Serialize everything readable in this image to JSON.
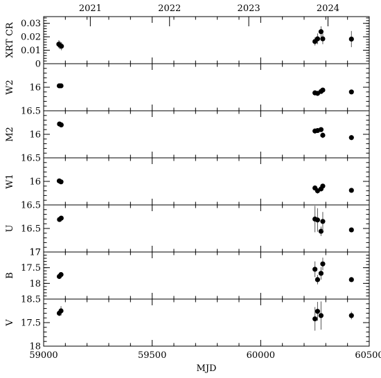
{
  "chart_data": {
    "type": "scatter",
    "xlabel": "MJD",
    "xlim": [
      59000,
      60500
    ],
    "x_ticks": [
      59000,
      59500,
      60000,
      60500
    ],
    "x_minor_step": 100,
    "top_axis": {
      "labels": [
        {
          "text": "2021",
          "mjd": 59215
        },
        {
          "text": "2022",
          "mjd": 59580
        },
        {
          "text": "2023",
          "mjd": 59945
        },
        {
          "text": "2024",
          "mjd": 60310
        }
      ]
    },
    "panels": [
      {
        "name": "xrt",
        "ylabel": "XRT CR",
        "ylim": [
          0,
          0.035
        ],
        "inverted": false,
        "ticks": [
          {
            "value": 0,
            "label": "0"
          },
          {
            "value": 0.01,
            "label": "0.01"
          },
          {
            "value": 0.02,
            "label": "0.02"
          },
          {
            "value": 0.03,
            "label": "0.03"
          }
        ],
        "minor_step": 0.002,
        "points": [
          {
            "x": 59070,
            "y": 0.0145,
            "err": 0.003
          },
          {
            "x": 59075,
            "y": 0.0138,
            "err": 0.003
          },
          {
            "x": 59082,
            "y": 0.013,
            "err": 0.003
          },
          {
            "x": 60250,
            "y": 0.0165,
            "err": 0.003
          },
          {
            "x": 60262,
            "y": 0.0185,
            "err": 0.004
          },
          {
            "x": 60278,
            "y": 0.0238,
            "err": 0.004
          },
          {
            "x": 60286,
            "y": 0.0185,
            "err": 0.004
          },
          {
            "x": 60418,
            "y": 0.0183,
            "err": 0.006
          }
        ]
      },
      {
        "name": "w2",
        "ylabel": "W2",
        "ylim": [
          15.5,
          16.5
        ],
        "inverted": true,
        "ticks": [
          {
            "value": 16,
            "label": "16"
          },
          {
            "value": 16.5,
            "label": "16.5"
          }
        ],
        "minor_step": 0.1,
        "points": [
          {
            "x": 59072,
            "y": 15.97,
            "err": 0.02
          },
          {
            "x": 59080,
            "y": 15.97,
            "err": 0.02
          },
          {
            "x": 60250,
            "y": 16.12,
            "err": 0.04
          },
          {
            "x": 60262,
            "y": 16.13,
            "err": 0.05
          },
          {
            "x": 60278,
            "y": 16.09,
            "err": 0.04
          },
          {
            "x": 60286,
            "y": 16.06,
            "err": 0.04
          },
          {
            "x": 60418,
            "y": 16.1,
            "err": 0.03
          }
        ]
      },
      {
        "name": "m2",
        "ylabel": "M2",
        "ylim": [
          15.5,
          16.5
        ],
        "inverted": true,
        "ticks": [
          {
            "value": 16,
            "label": "16"
          },
          {
            "value": 16.5,
            "label": "16.5"
          }
        ],
        "minor_step": 0.1,
        "points": [
          {
            "x": 59073,
            "y": 15.78,
            "err": 0.02
          },
          {
            "x": 59081,
            "y": 15.8,
            "err": 0.02
          },
          {
            "x": 60250,
            "y": 15.93,
            "err": 0.05
          },
          {
            "x": 60262,
            "y": 15.92,
            "err": 0.05
          },
          {
            "x": 60278,
            "y": 15.9,
            "err": 0.05
          },
          {
            "x": 60286,
            "y": 16.02,
            "err": 0.06
          },
          {
            "x": 60418,
            "y": 16.07,
            "err": 0.03
          }
        ]
      },
      {
        "name": "w1",
        "ylabel": "W1",
        "ylim": [
          15.5,
          16.5
        ],
        "inverted": true,
        "ticks": [
          {
            "value": 16,
            "label": "16"
          },
          {
            "value": 16.5,
            "label": "16.5"
          }
        ],
        "minor_step": 0.1,
        "points": [
          {
            "x": 59072,
            "y": 15.99,
            "err": 0.02
          },
          {
            "x": 59080,
            "y": 16.01,
            "err": 0.02
          },
          {
            "x": 60250,
            "y": 16.14,
            "err": 0.05
          },
          {
            "x": 60262,
            "y": 16.2,
            "err": 0.06
          },
          {
            "x": 60278,
            "y": 16.16,
            "err": 0.05
          },
          {
            "x": 60286,
            "y": 16.1,
            "err": 0.05
          },
          {
            "x": 60418,
            "y": 16.19,
            "err": 0.03
          }
        ]
      },
      {
        "name": "u",
        "ylabel": "U",
        "ylim": [
          16,
          17
        ],
        "inverted": true,
        "ticks": [
          {
            "value": 16.5,
            "label": "16.5"
          },
          {
            "value": 17,
            "label": "17"
          }
        ],
        "minor_step": 0.1,
        "points": [
          {
            "x": 59073,
            "y": 16.31,
            "err": 0.03
          },
          {
            "x": 59081,
            "y": 16.28,
            "err": 0.03
          },
          {
            "x": 60250,
            "y": 16.3,
            "err": 0.28
          },
          {
            "x": 60262,
            "y": 16.32,
            "err": 0.25
          },
          {
            "x": 60278,
            "y": 16.56,
            "err": 0.1
          },
          {
            "x": 60286,
            "y": 16.35,
            "err": 0.2
          },
          {
            "x": 60418,
            "y": 16.53,
            "err": 0.03
          }
        ]
      },
      {
        "name": "b",
        "ylabel": "B",
        "ylim": [
          17,
          18.5
        ],
        "inverted": true,
        "ticks": [
          {
            "value": 17,
            "label": "17"
          },
          {
            "value": 17.5,
            "label": "17.5"
          },
          {
            "value": 18,
            "label": "18"
          },
          {
            "value": 18.5,
            "label": "18.5"
          }
        ],
        "minor_step": 0.1,
        "points": [
          {
            "x": 59072,
            "y": 17.78,
            "err": 0.05
          },
          {
            "x": 59080,
            "y": 17.72,
            "err": 0.05
          },
          {
            "x": 60250,
            "y": 17.55,
            "err": 0.25
          },
          {
            "x": 60262,
            "y": 17.88,
            "err": 0.15
          },
          {
            "x": 60278,
            "y": 17.68,
            "err": 0.2
          },
          {
            "x": 60286,
            "y": 17.38,
            "err": 0.2
          },
          {
            "x": 60418,
            "y": 17.88,
            "err": 0.06
          }
        ]
      },
      {
        "name": "v",
        "ylabel": "V",
        "ylim": [
          17,
          18
        ],
        "inverted": true,
        "ticks": [
          {
            "value": 17.5,
            "label": "17.5"
          },
          {
            "value": 18,
            "label": "18"
          }
        ],
        "minor_step": 0.1,
        "points": [
          {
            "x": 59072,
            "y": 17.3,
            "err": 0.06
          },
          {
            "x": 59080,
            "y": 17.25,
            "err": 0.1
          },
          {
            "x": 60250,
            "y": 17.42,
            "err": 0.25
          },
          {
            "x": 60262,
            "y": 17.26,
            "err": 0.2
          },
          {
            "x": 60278,
            "y": 17.35,
            "err": 0.3
          },
          {
            "x": 60418,
            "y": 17.35,
            "err": 0.08
          }
        ]
      }
    ]
  }
}
